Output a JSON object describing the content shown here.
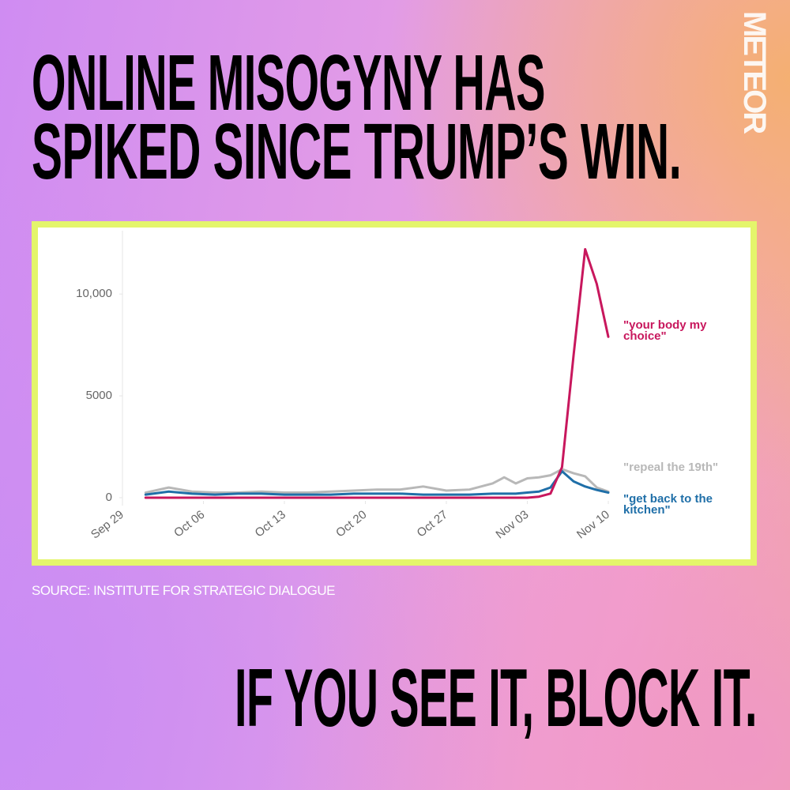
{
  "brand": "METEOR",
  "headline": [
    "ONLINE MISOGYNY HAS",
    "SPIKED SINCE TRUMP’S WIN."
  ],
  "chart_data": {
    "type": "line",
    "x": [
      2,
      4,
      6,
      8,
      10,
      12,
      14,
      16,
      18,
      20,
      22,
      24,
      26,
      28,
      30,
      32,
      33,
      34,
      35,
      36,
      37,
      38,
      39,
      40,
      41,
      42
    ],
    "series": [
      {
        "name": "\"your body my choice\"",
        "color": "#c8175d",
        "values": [
          0,
          0,
          0,
          0,
          0,
          0,
          0,
          0,
          0,
          0,
          0,
          0,
          0,
          0,
          0,
          0,
          0,
          0,
          0,
          50,
          200,
          1500,
          7000,
          12200,
          10500,
          7900
        ]
      },
      {
        "name": "\"repeal the 19th\"",
        "color": "#b8b8b8",
        "values": [
          250,
          500,
          300,
          250,
          250,
          300,
          250,
          250,
          300,
          350,
          400,
          400,
          550,
          350,
          400,
          700,
          1000,
          700,
          950,
          1000,
          1100,
          1400,
          1200,
          1050,
          500,
          300
        ]
      },
      {
        "name": "\"get back to the kitchen\"",
        "color": "#1f6fa8",
        "values": [
          150,
          300,
          200,
          150,
          200,
          200,
          150,
          150,
          150,
          200,
          200,
          200,
          150,
          150,
          150,
          200,
          200,
          200,
          250,
          300,
          500,
          1300,
          800,
          550,
          380,
          250
        ]
      }
    ],
    "xlim": [
      0,
      42
    ],
    "xticks": [
      {
        "value": 0,
        "label": "Sep 29"
      },
      {
        "value": 7,
        "label": "Oct 06"
      },
      {
        "value": 14,
        "label": "Oct 13"
      },
      {
        "value": 21,
        "label": "Oct 20"
      },
      {
        "value": 28,
        "label": "Oct 27"
      },
      {
        "value": 35,
        "label": "Nov 03"
      },
      {
        "value": 42,
        "label": "Nov 10"
      }
    ],
    "ylim": [
      0,
      12800
    ],
    "yticks": [
      0,
      5000,
      {
        "value": 10000,
        "label": "10,000"
      }
    ],
    "grid": false
  },
  "source": "SOURCE: INSTITUTE FOR STRATEGIC DIALOGUE",
  "footer": "IF YOU SEE IT, BLOCK IT."
}
